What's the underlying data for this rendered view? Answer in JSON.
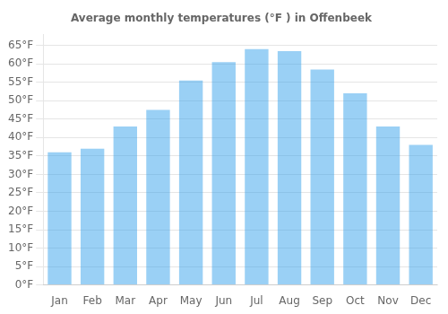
{
  "chart_data": {
    "type": "bar",
    "title": "Average monthly temperatures (°F ) in Offenbeek",
    "categories": [
      "Jan",
      "Feb",
      "Mar",
      "Apr",
      "May",
      "Jun",
      "Jul",
      "Aug",
      "Sep",
      "Oct",
      "Nov",
      "Dec"
    ],
    "values": [
      36,
      37,
      43,
      47.5,
      55.5,
      60.5,
      64,
      63.5,
      58.5,
      52,
      43,
      38
    ],
    "ylim": [
      0,
      68
    ],
    "yticks": [
      {
        "value": 0,
        "label": "0°F"
      },
      {
        "value": 5,
        "label": "5°F"
      },
      {
        "value": 10,
        "label": "10°F"
      },
      {
        "value": 15,
        "label": "15°F"
      },
      {
        "value": 20,
        "label": "20°F"
      },
      {
        "value": 25,
        "label": "25°F"
      },
      {
        "value": 30,
        "label": "30°F"
      },
      {
        "value": 35,
        "label": "35°F"
      },
      {
        "value": 40,
        "label": "40°F"
      },
      {
        "value": 45,
        "label": "45°F"
      },
      {
        "value": 50,
        "label": "50°F"
      },
      {
        "value": 55,
        "label": "55°F"
      },
      {
        "value": 60,
        "label": "60°F"
      },
      {
        "value": 65,
        "label": "65°F"
      }
    ],
    "grid": "y"
  }
}
